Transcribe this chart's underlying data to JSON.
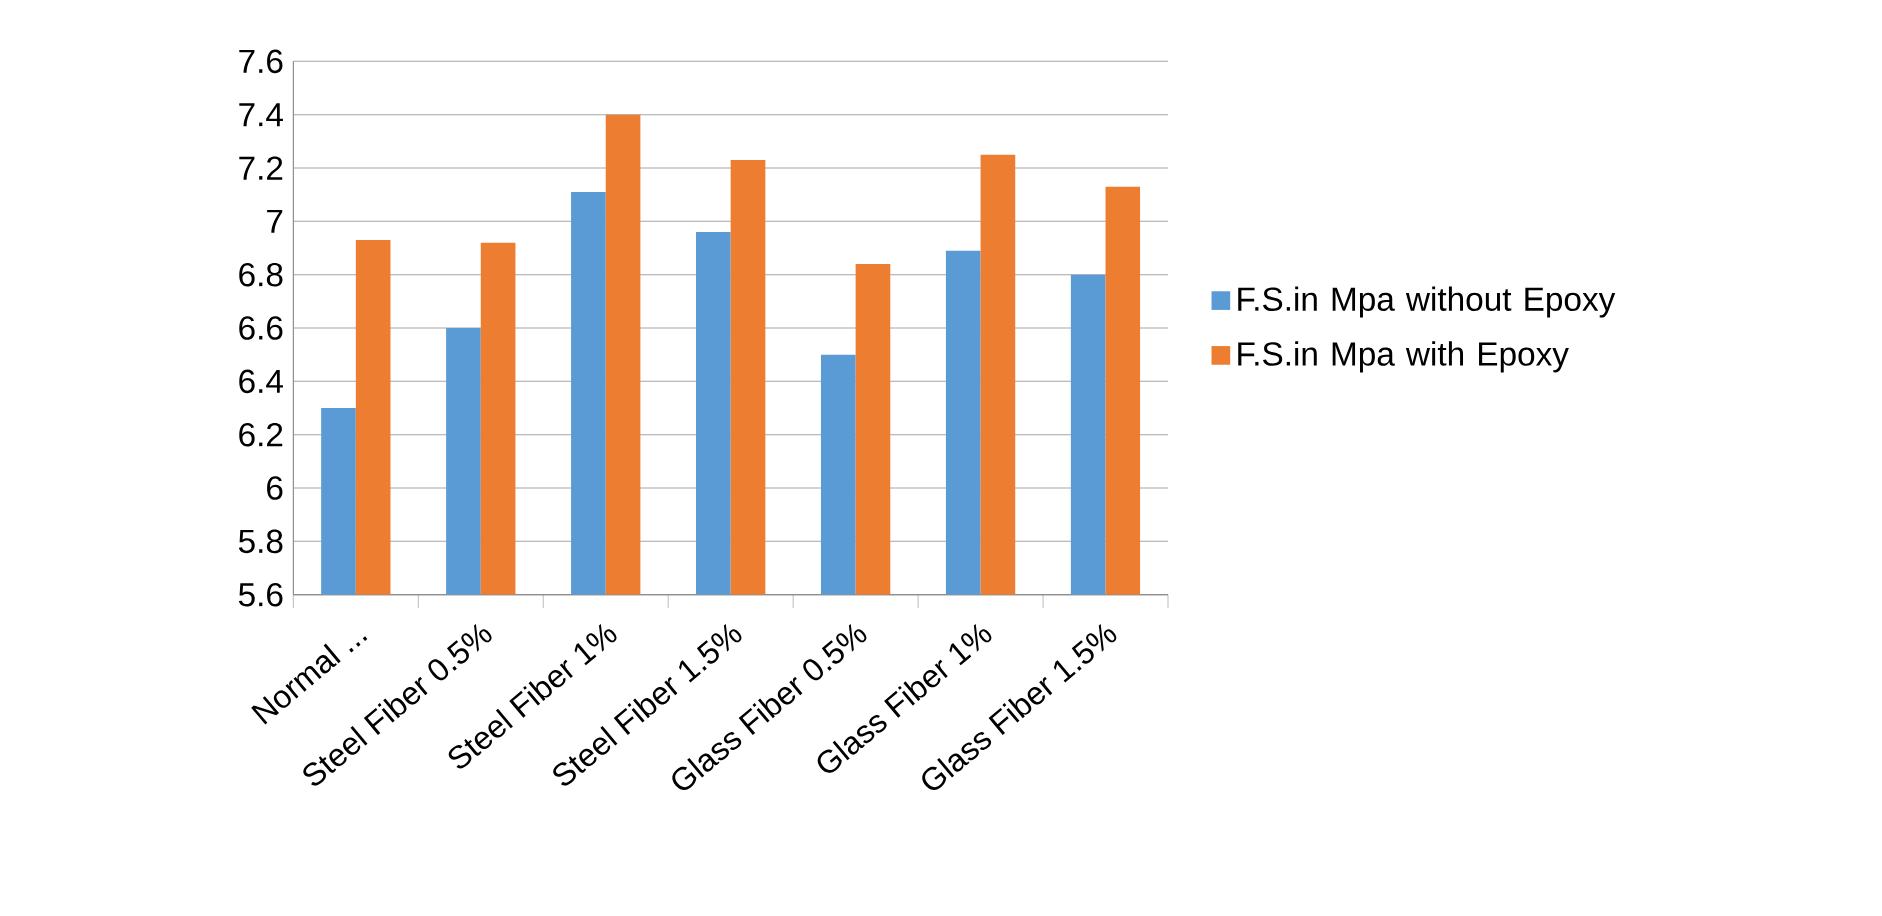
{
  "chart_data": {
    "type": "bar",
    "categories": [
      "Normal ...",
      "Steel Fiber 0.5%",
      "Steel Fiber 1%",
      "Steel Fiber 1.5%",
      "Glass Fiber 0.5%",
      "Glass Fiber 1%",
      "Glass Fiber 1.5%"
    ],
    "series": [
      {
        "name": "F.S.in Mpa without Epoxy",
        "color": "#5b9bd5",
        "values": [
          6.3,
          6.6,
          7.11,
          6.96,
          6.5,
          6.89,
          6.8
        ]
      },
      {
        "name": "F.S.in Mpa with Epoxy",
        "color": "#ed7d31",
        "values": [
          6.93,
          6.92,
          7.4,
          7.23,
          6.84,
          7.25,
          7.13
        ]
      }
    ],
    "ylim": [
      5.6,
      7.6
    ],
    "yticks": [
      5.6,
      5.8,
      6,
      6.2,
      6.4,
      6.6,
      6.8,
      7,
      7.2,
      7.4,
      7.6
    ],
    "grid": "y",
    "legend": "right"
  }
}
